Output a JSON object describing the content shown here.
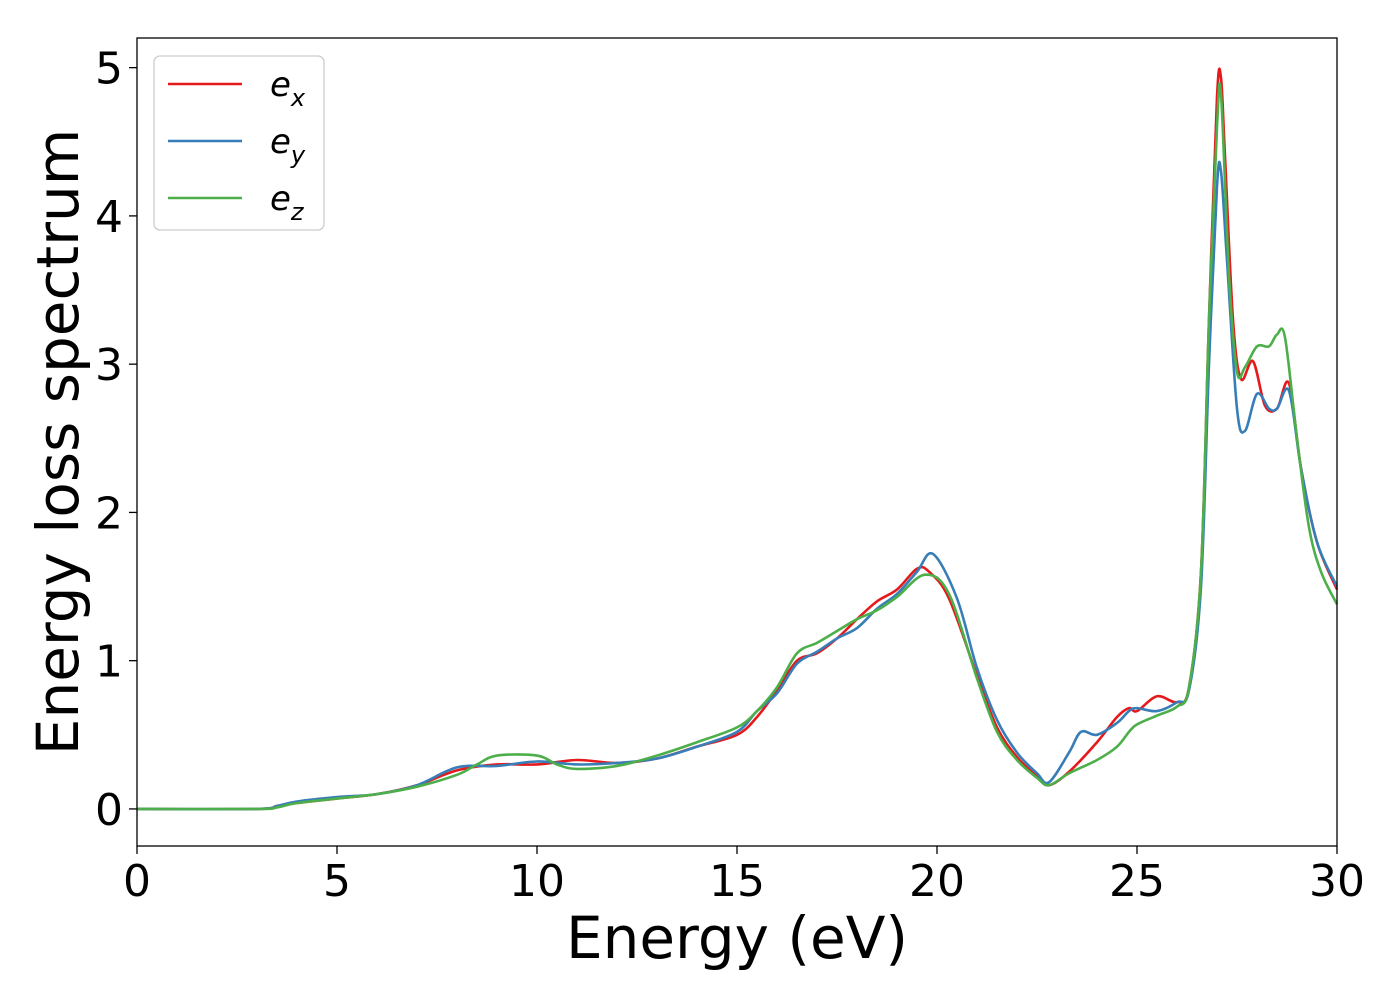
{
  "chart_data": {
    "type": "line",
    "title": "",
    "xlabel": "Energy (eV)",
    "ylabel": "Energy loss spectrum",
    "xlim": [
      0,
      30
    ],
    "ylim": [
      -0.25,
      5.2
    ],
    "xticks": [
      0,
      5,
      10,
      15,
      20,
      25,
      30
    ],
    "yticks": [
      0,
      1,
      2,
      3,
      4,
      5
    ],
    "legend_position": "top-left",
    "series": [
      {
        "name": "e_x",
        "base": "e",
        "sub": "x",
        "color": "#e41a1c",
        "x": [
          0,
          3,
          3.5,
          4,
          5,
          6,
          7,
          8,
          9,
          10,
          11,
          12,
          13,
          14,
          15,
          15.5,
          16,
          16.5,
          17,
          17.5,
          18,
          18.5,
          19,
          19.5,
          19.8,
          20.3,
          21,
          21.5,
          22,
          22.5,
          22.8,
          23.3,
          24,
          24.5,
          24.8,
          25,
          25.5,
          26,
          26.3,
          26.6,
          26.8,
          27,
          27.1,
          27.2,
          27.4,
          27.6,
          27.9,
          28.2,
          28.5,
          28.8,
          29.1,
          29.5,
          30
        ],
        "y": [
          0,
          0,
          0.02,
          0.04,
          0.07,
          0.1,
          0.16,
          0.26,
          0.3,
          0.3,
          0.33,
          0.31,
          0.34,
          0.42,
          0.5,
          0.62,
          0.8,
          1.0,
          1.05,
          1.15,
          1.28,
          1.4,
          1.48,
          1.62,
          1.6,
          1.42,
          0.9,
          0.55,
          0.35,
          0.22,
          0.16,
          0.25,
          0.45,
          0.62,
          0.68,
          0.66,
          0.76,
          0.72,
          0.82,
          1.6,
          3.3,
          4.8,
          4.93,
          4.4,
          3.3,
          2.9,
          3.02,
          2.72,
          2.7,
          2.87,
          2.3,
          1.8,
          1.48
        ]
      },
      {
        "name": "e_y",
        "base": "e",
        "sub": "y",
        "color": "#377eb8",
        "x": [
          0,
          3,
          3.5,
          4,
          5,
          6,
          7,
          8,
          9,
          10,
          11,
          12,
          13,
          14,
          15,
          15.5,
          16,
          16.5,
          17,
          17.5,
          18,
          18.5,
          19,
          19.5,
          19.9,
          20.5,
          21,
          21.5,
          22,
          22.5,
          22.8,
          23.3,
          23.6,
          24,
          24.5,
          24.8,
          25,
          25.5,
          26,
          26.3,
          26.6,
          26.8,
          27,
          27.1,
          27.25,
          27.5,
          27.7,
          28,
          28.3,
          28.5,
          28.8,
          29.1,
          29.5,
          30
        ],
        "y": [
          0,
          0,
          0.02,
          0.05,
          0.08,
          0.1,
          0.16,
          0.28,
          0.29,
          0.32,
          0.3,
          0.31,
          0.34,
          0.42,
          0.52,
          0.66,
          0.78,
          0.98,
          1.06,
          1.15,
          1.22,
          1.35,
          1.45,
          1.6,
          1.72,
          1.42,
          0.95,
          0.6,
          0.38,
          0.24,
          0.18,
          0.38,
          0.52,
          0.5,
          0.58,
          0.66,
          0.68,
          0.66,
          0.72,
          0.8,
          1.5,
          3.0,
          4.2,
          4.3,
          3.7,
          2.7,
          2.55,
          2.8,
          2.7,
          2.7,
          2.82,
          2.3,
          1.8,
          1.5
        ]
      },
      {
        "name": "e_z",
        "base": "e",
        "sub": "z",
        "color": "#4daf4a",
        "x": [
          0,
          3,
          3.5,
          4,
          5,
          6,
          7,
          8,
          8.5,
          9,
          10,
          10.5,
          11,
          12,
          13,
          14,
          15,
          15.5,
          16,
          16.5,
          17,
          17.5,
          18,
          18.5,
          19,
          19.7,
          20.3,
          21,
          21.5,
          22,
          22.5,
          22.8,
          23.3,
          24,
          24.5,
          24.8,
          25,
          25.5,
          26,
          26.3,
          26.6,
          26.8,
          27,
          27.1,
          27.3,
          27.5,
          27.7,
          28,
          28.3,
          28.5,
          28.7,
          29,
          29.3,
          29.6,
          30
        ],
        "y": [
          0,
          0,
          0.01,
          0.04,
          0.07,
          0.1,
          0.15,
          0.23,
          0.3,
          0.36,
          0.36,
          0.3,
          0.27,
          0.29,
          0.36,
          0.45,
          0.55,
          0.66,
          0.82,
          1.05,
          1.12,
          1.2,
          1.28,
          1.34,
          1.43,
          1.58,
          1.45,
          0.88,
          0.52,
          0.33,
          0.21,
          0.16,
          0.24,
          0.33,
          0.42,
          0.52,
          0.57,
          0.63,
          0.69,
          0.82,
          1.6,
          3.3,
          4.6,
          4.82,
          3.6,
          2.95,
          2.98,
          3.12,
          3.12,
          3.2,
          3.18,
          2.5,
          1.9,
          1.6,
          1.38
        ]
      }
    ]
  }
}
